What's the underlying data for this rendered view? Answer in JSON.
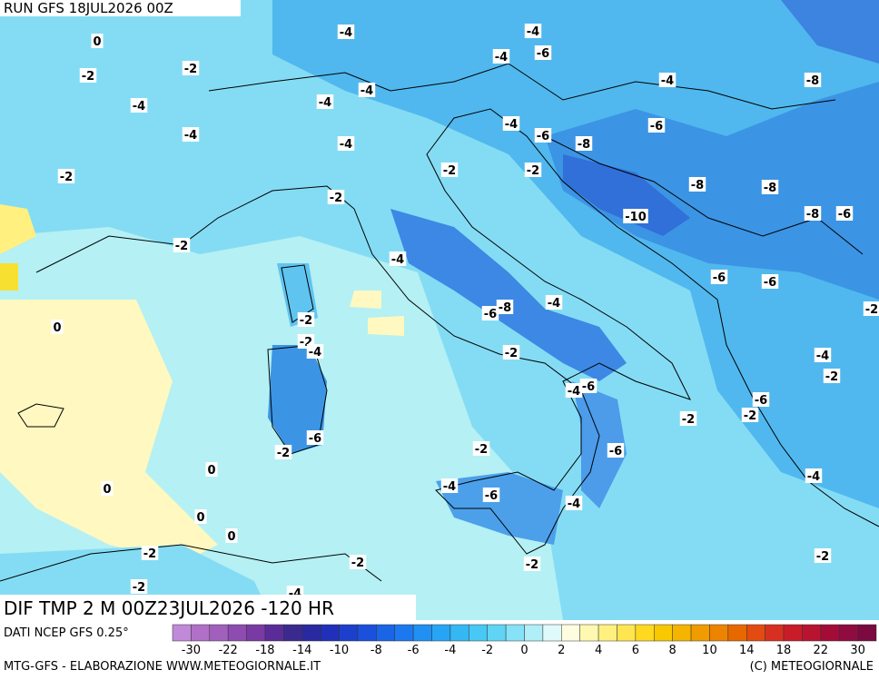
{
  "header": {
    "run": "RUN GFS 18JUL2026 00Z"
  },
  "map": {
    "title": "DIF TMP 2 M 00Z23JUL2026 -120 HR",
    "contour_labels": [
      "0",
      "-2",
      "-2",
      "-4",
      "-4",
      "-2",
      "-4",
      "-4",
      "-4",
      "-6",
      "-4",
      "-4",
      "-4",
      "-4",
      "-6",
      "-8",
      "-6",
      "-4",
      "-8",
      "-2",
      "-2",
      "-2",
      "-8",
      "-8",
      "-10",
      "-8",
      "-6",
      "-2",
      "-4",
      "-6",
      "-6",
      "-4",
      "-6",
      "-8",
      "-2",
      "0",
      "-2",
      "-4",
      "-2",
      "-4",
      "-2",
      "-4",
      "-6",
      "-6",
      "-2",
      "-2",
      "-6",
      "-2",
      "-2",
      "-6",
      "0",
      "0",
      "-4",
      "-6",
      "-4",
      "-4",
      "0",
      "0",
      "-2",
      "-2",
      "-2",
      "-2",
      "-2",
      "-4",
      "-2"
    ]
  },
  "colorbar": {
    "source": "DATI NCEP GFS 0.25°",
    "colors": [
      "#c08ad8",
      "#b070c8",
      "#a060bc",
      "#8e4cb0",
      "#7a3aa4",
      "#5a2c98",
      "#3a2a90",
      "#2a2aa0",
      "#2030b8",
      "#1c40cc",
      "#1a50dc",
      "#1a64e6",
      "#1c78ee",
      "#2090f2",
      "#28a4f4",
      "#34b8f4",
      "#48c8f4",
      "#60d4f4",
      "#86e2f6",
      "#b0eef8",
      "#e0fafc",
      "#fffde0",
      "#fff8b0",
      "#fff080",
      "#ffe650",
      "#ffd820",
      "#f8c800",
      "#f4b400",
      "#f09c00",
      "#ec8400",
      "#e86800",
      "#e24c10",
      "#d83020",
      "#c81c28",
      "#b81430",
      "#a40c38",
      "#900c40",
      "#7a0a40"
    ],
    "labels": [
      "-30",
      "-22",
      "-18",
      "-14",
      "-10",
      "-8",
      "-6",
      "-4",
      "-2",
      "0",
      "2",
      "4",
      "6",
      "8",
      "10",
      "14",
      "18",
      "22",
      "30"
    ]
  },
  "footer": {
    "left": "MTG-GFS - ELABORAZIONE WWW.METEOGIORNALE.IT",
    "right": "(C) METEOGIORNALE"
  }
}
